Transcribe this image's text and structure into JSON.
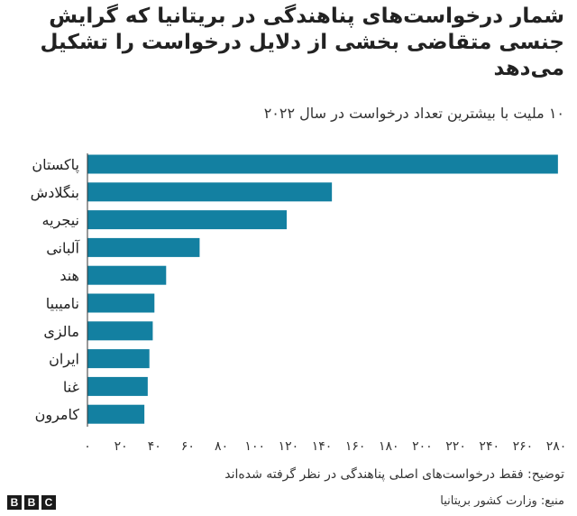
{
  "title": "شمار درخواست‌های پناهندگی در بریتانیا که گرایش جنسی متقاضی بخشی از دلایل درخواست را تشکیل می‌دهد",
  "subtitle": "۱۰ ملیت با بیشترین تعداد درخواست در سال ۲۰۲۲",
  "note": "توضیح: فقط درخواست‌های اصلی پناهندگی در نظر گرفته شده‌اند",
  "source": "منبع: وزارت کشور بریتانیا",
  "logo_letters": [
    "B",
    "B",
    "C"
  ],
  "colors": {
    "bar": "#1380A1",
    "axis": "#333333"
  },
  "chart_data": {
    "type": "bar",
    "orientation": "horizontal",
    "title": "شمار درخواست‌های پناهندگی در بریتانیا که گرایش جنسی متقاضی بخشی از دلایل درخواست را تشکیل می‌دهد",
    "subtitle": "۱۰ ملیت با بیشترین تعداد درخواست در سال ۲۰۲۲",
    "categories": [
      "پاکستان",
      "بنگلادش",
      "نیجریه",
      "آلبانی",
      "هند",
      "نامیبیا",
      "مالزی",
      "ایران",
      "غنا",
      "کامرون"
    ],
    "values": [
      281,
      146,
      119,
      67,
      47,
      40,
      39,
      37,
      36,
      34
    ],
    "xlim": [
      0,
      280
    ],
    "x_ticks": [
      0,
      20,
      40,
      60,
      80,
      100,
      120,
      140,
      160,
      180,
      200,
      220,
      240,
      260,
      280
    ],
    "x_tick_labels": [
      "۰",
      "۲۰",
      "۴۰",
      "۶۰",
      "۸۰",
      "۱۰۰",
      "۱۲۰",
      "۱۴۰",
      "۱۶۰",
      "۱۸۰",
      "۲۰۰",
      "۲۲۰",
      "۲۴۰",
      "۲۶۰",
      "۲۸۰"
    ],
    "grid": false,
    "legend": "none"
  }
}
